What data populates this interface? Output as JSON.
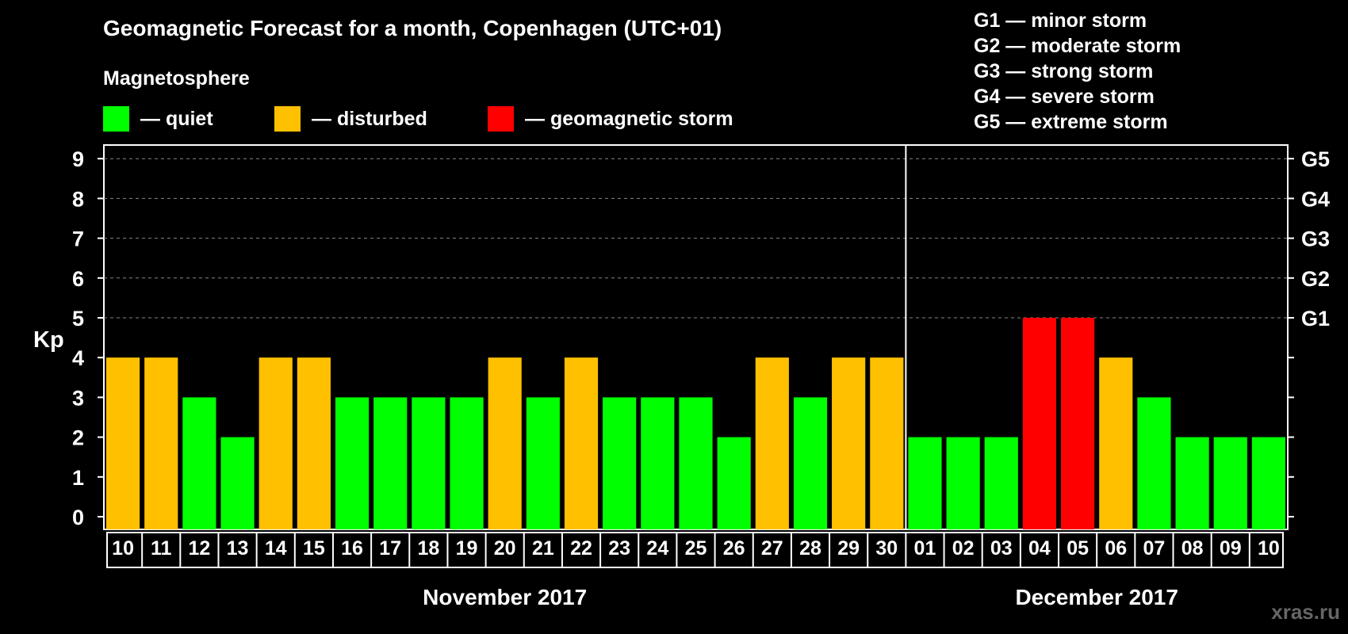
{
  "page": {
    "title": "Geomagnetic Forecast for a month, Copenhagen (UTC+01)",
    "subtitle": "Magnetosphere",
    "brand": "xras.ru"
  },
  "legend": [
    {
      "color": "#00ff00",
      "label": "— quiet"
    },
    {
      "color": "#ffc000",
      "label": "— disturbed"
    },
    {
      "color": "#ff0000",
      "label": "— geomagnetic storm"
    }
  ],
  "storm_scale": [
    "G1 — minor storm",
    "G2 — moderate storm",
    "G3 — strong storm",
    "G4 — severe storm",
    "G5 — extreme storm"
  ],
  "chart_data": {
    "type": "bar",
    "title": "Geomagnetic Forecast for a month, Copenhagen (UTC+01)",
    "ylabel": "Kp",
    "ylim": [
      0,
      9
    ],
    "y_ticks": [
      "0",
      "1",
      "2",
      "3",
      "4",
      "5",
      "6",
      "7",
      "8",
      "9"
    ],
    "right_axis_labels": [
      {
        "value": 5,
        "label": "G1"
      },
      {
        "value": 6,
        "label": "G2"
      },
      {
        "value": 7,
        "label": "G3"
      },
      {
        "value": 8,
        "label": "G4"
      },
      {
        "value": 9,
        "label": "G5"
      }
    ],
    "grid": "horizontal dashed at Kp 5-9",
    "categories": [
      "10",
      "11",
      "12",
      "13",
      "14",
      "15",
      "16",
      "17",
      "18",
      "19",
      "20",
      "21",
      "22",
      "23",
      "24",
      "25",
      "26",
      "27",
      "28",
      "29",
      "30",
      "01",
      "02",
      "03",
      "04",
      "05",
      "06",
      "07",
      "08",
      "09",
      "10"
    ],
    "values": [
      4,
      4,
      3,
      2,
      4,
      4,
      3,
      3,
      3,
      3,
      4,
      3,
      4,
      3,
      3,
      3,
      2,
      4,
      3,
      4,
      4,
      2,
      2,
      2,
      5,
      5,
      4,
      3,
      2,
      2,
      2
    ],
    "month_groups": [
      {
        "label": "November 2017",
        "count": 21
      },
      {
        "label": "December 2017",
        "count": 10
      }
    ],
    "color_rule": {
      "quiet": "Kp < 4",
      "disturbed": "Kp = 4",
      "storm": "Kp >= 5"
    },
    "colors": {
      "quiet": "#00ff00",
      "disturbed": "#ffc000",
      "storm": "#ff0000"
    }
  }
}
